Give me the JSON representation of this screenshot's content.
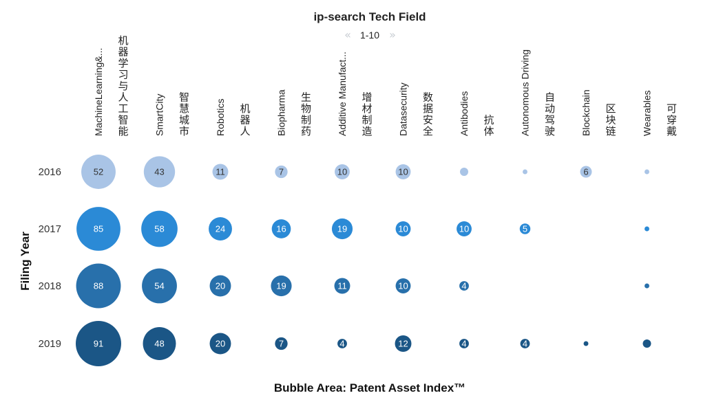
{
  "chart_data": {
    "type": "bubble-matrix",
    "title": "ip-search Tech Field",
    "pager": {
      "label": "1-10",
      "prev_icon": "double-chevron-left-icon",
      "next_icon": "double-chevron-right-icon"
    },
    "ylabel": "Filing Year",
    "size_label": "Bubble Area:  Patent Asset Index™",
    "columns": [
      {
        "en": "MachineLearning&...",
        "cn": "机器学习与人工智能"
      },
      {
        "en": "SmartCity",
        "cn": "智慧城市"
      },
      {
        "en": "Robotics",
        "cn": "机器人"
      },
      {
        "en": "Biopharma",
        "cn": "生物制药"
      },
      {
        "en": "Additive Manufact...",
        "cn": "增材制造"
      },
      {
        "en": "Datasecurity",
        "cn": "数据安全"
      },
      {
        "en": "Antibodies",
        "cn": "抗体"
      },
      {
        "en": "Autonomous Driving",
        "cn": "自动驾驶"
      },
      {
        "en": "Blockchain",
        "cn": "区块链"
      },
      {
        "en": "Wearables",
        "cn": "可穿戴"
      }
    ],
    "rows": [
      "2016",
      "2017",
      "2018",
      "2019"
    ],
    "row_colors": [
      "#a9c4e6",
      "#2b8ad6",
      "#2870ab",
      "#1b5686"
    ],
    "values": [
      [
        52,
        43,
        11,
        7,
        10,
        10,
        3,
        1,
        6,
        1
      ],
      [
        85,
        58,
        24,
        16,
        19,
        10,
        10,
        5,
        null,
        1
      ],
      [
        88,
        54,
        20,
        19,
        11,
        10,
        4,
        null,
        null,
        1
      ],
      [
        91,
        48,
        20,
        7,
        4,
        12,
        4,
        4,
        1,
        3
      ]
    ],
    "labels": [
      [
        "52",
        "43",
        "11",
        "7",
        "10",
        "10",
        "",
        "",
        "6",
        ""
      ],
      [
        "85",
        "58",
        "24",
        "16",
        "19",
        "10",
        "10",
        "5",
        "",
        ""
      ],
      [
        "88",
        "54",
        "20",
        "19",
        "11",
        "10",
        "4",
        "",
        "",
        ""
      ],
      [
        "91",
        "48",
        "20",
        "7",
        "4",
        "12",
        "4",
        "4",
        "",
        ""
      ]
    ]
  }
}
